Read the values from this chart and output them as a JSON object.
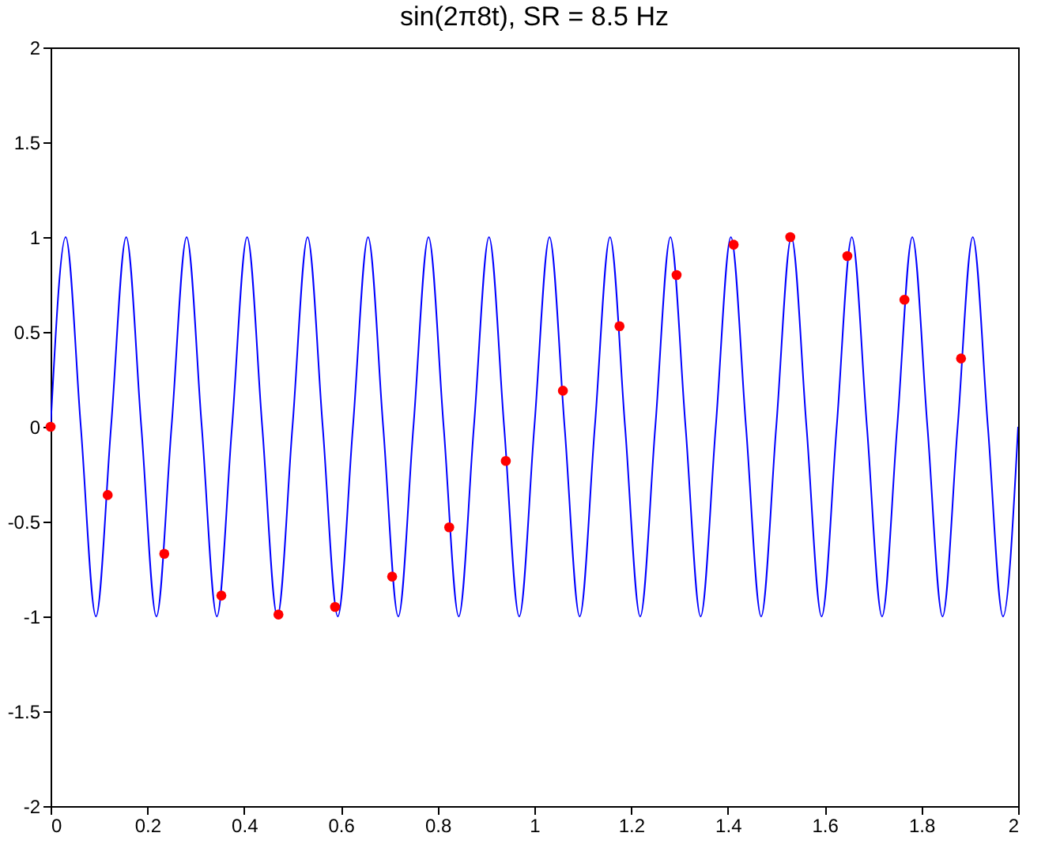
{
  "chart_data": {
    "type": "line",
    "title": "sin(2π8t), SR = 8.5 Hz",
    "xlim": [
      0,
      2
    ],
    "xticks": [
      0,
      0.2,
      0.4,
      0.6,
      0.8,
      1,
      1.2,
      1.4,
      1.6,
      1.8,
      2
    ],
    "ylim": [
      -2,
      2
    ],
    "yticks": [
      -2,
      -1.5,
      -1,
      -0.5,
      0,
      0.5,
      1,
      1.5,
      2
    ],
    "grid": false,
    "series": [
      {
        "type": "line",
        "color": "#0000ff",
        "marker": "none",
        "x": [
          0,
          0.03125,
          0.0625,
          0.09375,
          0.125,
          0.15625,
          0.1875,
          0.21875,
          0.25,
          0.28125,
          0.3125,
          0.34375,
          0.375,
          0.40625,
          0.4375,
          0.46875,
          0.5,
          0.53125,
          0.5625,
          0.59375,
          0.625,
          0.65625,
          0.6875,
          0.71875,
          0.75,
          0.78125,
          0.8125,
          0.84375,
          0.875,
          0.90625,
          0.9375,
          0.96875,
          1,
          1.03125,
          1.0625,
          1.09375,
          1.125,
          1.15625,
          1.1875,
          1.21875,
          1.25,
          1.28125,
          1.3125,
          1.34375,
          1.375,
          1.40625,
          1.4375,
          1.46875,
          1.5,
          1.53125,
          1.5625,
          1.59375,
          1.625,
          1.65625,
          1.6875,
          1.71875,
          1.75,
          1.78125,
          1.8125,
          1.84375,
          1.875,
          1.90625,
          1.9375,
          1.96875,
          2
        ],
        "values": [
          0,
          1,
          0,
          -1,
          0,
          1,
          0,
          -1,
          0,
          1,
          0,
          -1,
          0,
          1,
          0,
          -1,
          0,
          1,
          0,
          -1,
          0,
          1,
          0,
          -1,
          0,
          1,
          0,
          -1,
          0,
          1,
          0,
          -1,
          0,
          1,
          0,
          -1,
          0,
          1,
          0,
          -1,
          0,
          1,
          0,
          -1,
          0,
          1,
          0,
          -1,
          0,
          1,
          0,
          -1,
          0,
          1,
          0,
          -1,
          0,
          1,
          0,
          -1,
          0,
          1,
          0,
          -1,
          0
        ]
      },
      {
        "type": "scatter",
        "color": "#ff0000",
        "marker": "circle",
        "x": [
          0,
          0.118,
          0.235,
          0.353,
          0.471,
          0.588,
          0.706,
          0.824,
          0.941,
          1.059,
          1.176,
          1.294,
          1.412,
          1.529,
          1.647,
          1.765,
          1.882
        ],
        "values": [
          0,
          -0.36,
          -0.67,
          -0.89,
          -0.99,
          -0.95,
          -0.79,
          -0.53,
          -0.18,
          0.19,
          0.53,
          0.8,
          0.96,
          1.0,
          0.9,
          0.67,
          0.36
        ]
      }
    ]
  }
}
